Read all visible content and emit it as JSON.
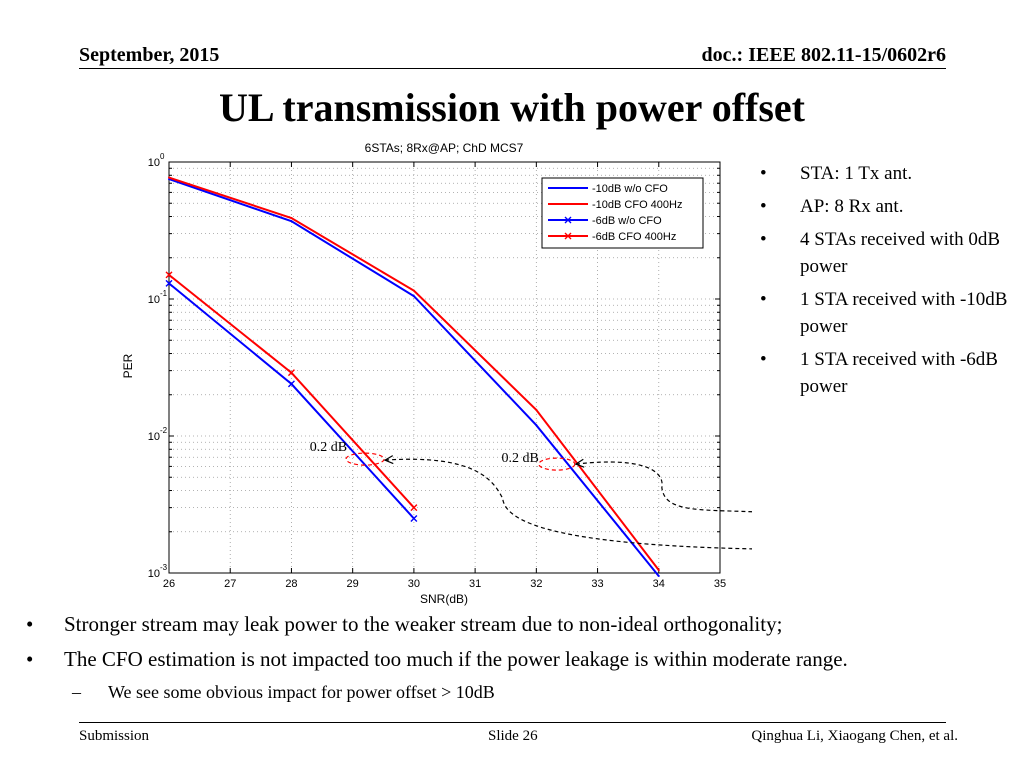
{
  "header": {
    "date": "September, 2015",
    "doc": "doc.: IEEE 802.11-15/0602r6"
  },
  "slide_title": "UL transmission with power offset",
  "chart_data": {
    "type": "line",
    "title": "6STAs; 8Rx@AP; ChD MCS7",
    "xlabel": "SNR(dB)",
    "ylabel": "PER",
    "xlim": [
      26,
      35
    ],
    "ylim": [
      0.001,
      1
    ],
    "yscale": "log",
    "xticks": [
      "26",
      "27",
      "28",
      "29",
      "30",
      "31",
      "32",
      "33",
      "34",
      "35"
    ],
    "yticks": [
      {
        "base": "10",
        "exp": "0",
        "value": 1
      },
      {
        "base": "10",
        "exp": "-1",
        "value": 0.1
      },
      {
        "base": "10",
        "exp": "-2",
        "value": 0.01
      },
      {
        "base": "10",
        "exp": "-3",
        "value": 0.001
      }
    ],
    "grid": true,
    "legend_position": "top-right",
    "series": [
      {
        "name": "-10dB w/o CFO",
        "color": "#0000ff",
        "marker": "none",
        "x": [
          26,
          28,
          30,
          32,
          34
        ],
        "y": [
          0.75,
          0.37,
          0.105,
          0.012,
          0.00095
        ]
      },
      {
        "name": "-10dB CFO 400Hz",
        "color": "#ff0000",
        "marker": "none",
        "x": [
          26,
          28,
          30,
          32,
          34
        ],
        "y": [
          0.77,
          0.39,
          0.115,
          0.0155,
          0.00105
        ]
      },
      {
        "name": "-6dB w/o CFO",
        "color": "#0000ff",
        "marker": "x",
        "x": [
          26,
          28,
          30
        ],
        "y": [
          0.13,
          0.024,
          0.0025
        ]
      },
      {
        "name": "-6dB CFO 400Hz",
        "color": "#ff0000",
        "marker": "x",
        "x": [
          26,
          28,
          30
        ],
        "y": [
          0.15,
          0.029,
          0.003
        ]
      }
    ],
    "annotations": [
      {
        "text": "0.2 dB",
        "x": 29.3,
        "y": 0.0075
      },
      {
        "text": "0.2 dB",
        "x": 32.4,
        "y": 0.0075
      }
    ]
  },
  "right_bullets": [
    {
      "bullet": "•",
      "text": "STA: 1 Tx ant."
    },
    {
      "bullet": "•",
      "text": "AP: 8 Rx ant."
    },
    {
      "bullet": "•",
      "text": "4 STAs received with 0dB power"
    },
    {
      "bullet": "•",
      "text": "1 STA received with -10dB power"
    },
    {
      "bullet": "•",
      "text": "1 STA received with -6dB power"
    }
  ],
  "bottom_bullets": [
    {
      "bullet": "•",
      "text": "Stronger stream may leak power to the weaker stream due to non-ideal orthogonality;"
    },
    {
      "bullet": "•",
      "text": "The CFO estimation is not impacted too much if the power leakage is within moderate range."
    }
  ],
  "sub_bullet": {
    "dash": "–",
    "text": "We see some obvious impact for power offset > 10dB"
  },
  "footer": {
    "left": "Submission",
    "center": "Slide 26",
    "right": "Qinghua Li, Xiaogang Chen, et al."
  }
}
